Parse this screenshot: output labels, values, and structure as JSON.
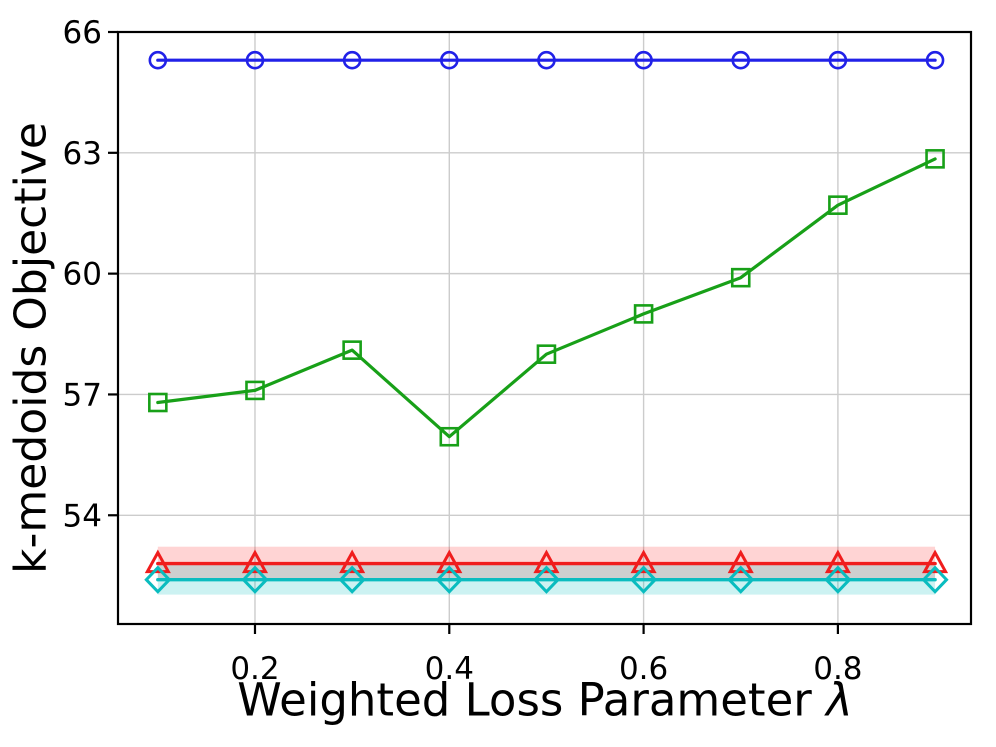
{
  "figure": {
    "background": "#ffffff"
  },
  "chart_data": {
    "type": "line",
    "title": "",
    "xlabel": "Weighted Loss Parameter λ",
    "xlabel_text": "Weighted Loss Parameter",
    "xlabel_symbol": "λ",
    "ylabel": "k-medoids Objective",
    "x": [
      0.1,
      0.2,
      0.3,
      0.4,
      0.5,
      0.6,
      0.7,
      0.8,
      0.9
    ],
    "series": [
      {
        "name": "blue-circle",
        "marker": "circle",
        "color": "#2121e8",
        "line_width": 3.2,
        "values": [
          65.3,
          65.3,
          65.3,
          65.3,
          65.3,
          65.3,
          65.3,
          65.3,
          65.3
        ]
      },
      {
        "name": "green-square",
        "marker": "square",
        "color": "#18a018",
        "line_width": 3.2,
        "values": [
          56.8,
          57.1,
          58.1,
          55.95,
          58.0,
          59.0,
          59.9,
          61.7,
          62.85
        ]
      },
      {
        "name": "red-triangle",
        "marker": "triangle-up",
        "color": "#f01d1d",
        "line_width": 3.4,
        "values": [
          52.8,
          52.8,
          52.8,
          52.8,
          52.8,
          52.8,
          52.8,
          52.8,
          52.8
        ],
        "band_halfwidth": 0.42,
        "band_color": "#ff0000",
        "band_opacity": 0.17
      },
      {
        "name": "cyan-diamond",
        "marker": "diamond",
        "color": "#0abcbf",
        "line_width": 3.4,
        "values": [
          52.4,
          52.4,
          52.4,
          52.4,
          52.4,
          52.4,
          52.4,
          52.4,
          52.4
        ],
        "band_halfwidth": 0.37,
        "band_color": "#00bfbf",
        "band_opacity": 0.2
      }
    ],
    "xtick_values": [
      0.2,
      0.4,
      0.6,
      0.8
    ],
    "xtick_labels": [
      "0.2",
      "0.4",
      "0.6",
      "0.8"
    ],
    "ytick_values": [
      54,
      57,
      60,
      63,
      66
    ],
    "ytick_labels": [
      "54",
      "57",
      "60",
      "63",
      "66"
    ],
    "xlim": [
      0.059,
      0.937
    ],
    "ylim": [
      51.3,
      66
    ],
    "grid": true,
    "grid_color": "#cccccc",
    "axis_color": "#000000",
    "legend": "none"
  }
}
